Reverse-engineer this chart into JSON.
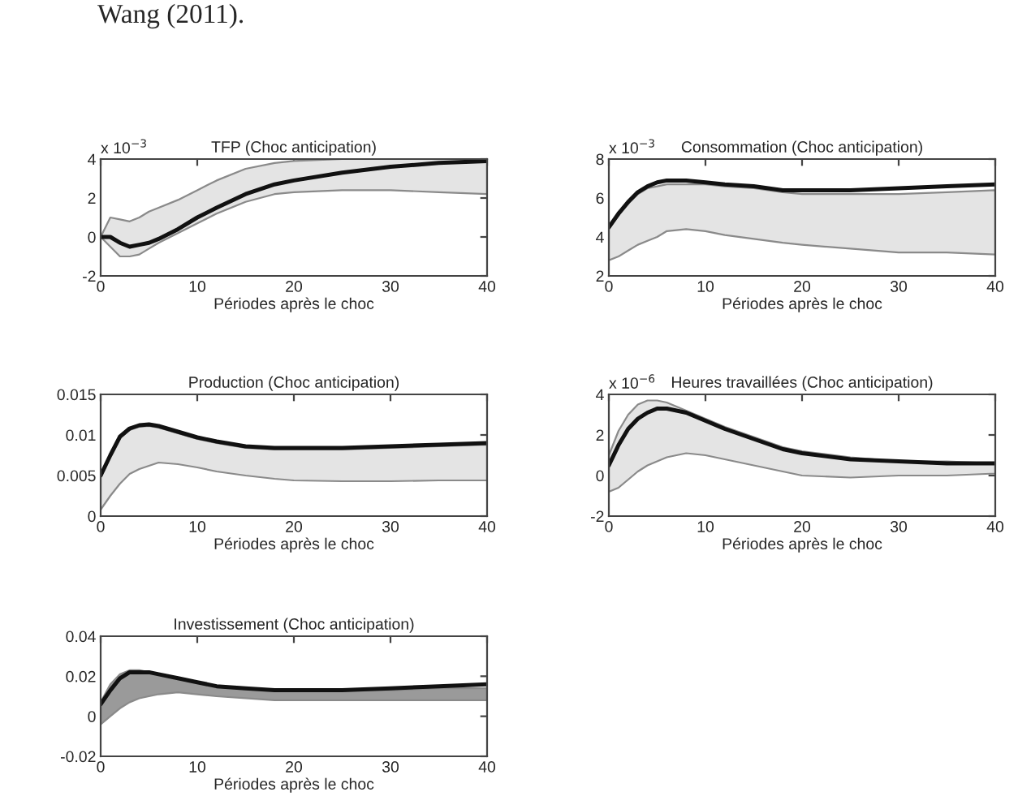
{
  "chart_data": [
    {
      "type": "line",
      "title": "TFP (Choc anticipation)",
      "xlabel": "Périodes après le choc",
      "annotations": [
        "x 10$^{−3}$",
        "Wang (2011)."
      ],
      "xlim": [
        0,
        40
      ],
      "xticks": [
        0,
        10,
        20,
        30,
        40
      ],
      "ylim": [
        -2,
        4
      ],
      "yticks": [
        -2,
        0,
        2,
        4
      ],
      "grid": false,
      "legend": false,
      "x": [
        0,
        1,
        2,
        3,
        4,
        5,
        6,
        8,
        10,
        12,
        15,
        18,
        20,
        25,
        30,
        35,
        40
      ],
      "series": [
        {
          "color": "#111111",
          "values": [
            0,
            0,
            -0.3,
            -0.5,
            -0.4,
            -0.3,
            -0.1,
            0.4,
            1.0,
            1.5,
            2.2,
            2.7,
            2.9,
            3.3,
            3.6,
            3.8,
            3.9
          ],
          "upper": [
            0,
            1.0,
            0.9,
            0.8,
            1.0,
            1.3,
            1.5,
            1.9,
            2.4,
            2.9,
            3.5,
            3.8,
            3.9,
            4.0,
            4.0,
            4.0,
            4.0
          ],
          "lower": [
            0,
            -0.5,
            -1.0,
            -1.0,
            -0.9,
            -0.6,
            -0.3,
            0.2,
            0.7,
            1.2,
            1.8,
            2.2,
            2.3,
            2.4,
            2.4,
            2.3,
            2.2
          ]
        }
      ]
    },
    {
      "type": "line",
      "title": "Consommation (Choc anticipation)",
      "xlabel": "Périodes après le choc",
      "annotations": [
        "x 10$^{−3}$"
      ],
      "xlim": [
        0,
        40
      ],
      "xticks": [
        0,
        10,
        20,
        30,
        40
      ],
      "ylim": [
        2,
        8
      ],
      "yticks": [
        2,
        4,
        6,
        8
      ],
      "grid": false,
      "legend": false,
      "x": [
        0,
        1,
        2,
        3,
        4,
        5,
        6,
        8,
        10,
        12,
        15,
        18,
        20,
        25,
        30,
        35,
        40
      ],
      "series": [
        {
          "color": "#111111",
          "values": [
            4.5,
            5.2,
            5.8,
            6.3,
            6.6,
            6.8,
            6.9,
            6.9,
            6.8,
            6.7,
            6.6,
            6.4,
            6.4,
            6.4,
            6.5,
            6.6,
            6.7
          ],
          "upper": [
            4.4,
            5.1,
            5.7,
            6.2,
            6.5,
            6.6,
            6.7,
            6.7,
            6.7,
            6.6,
            6.5,
            6.3,
            6.2,
            6.2,
            6.2,
            6.3,
            6.4
          ],
          "lower": [
            2.8,
            3.0,
            3.3,
            3.6,
            3.8,
            4.0,
            4.3,
            4.4,
            4.3,
            4.1,
            3.9,
            3.7,
            3.6,
            3.4,
            3.2,
            3.2,
            3.1
          ]
        }
      ]
    },
    {
      "type": "line",
      "title": "Production (Choc anticipation)",
      "xlabel": "Périodes après le choc",
      "xlim": [
        0,
        40
      ],
      "xticks": [
        0,
        10,
        20,
        30,
        40
      ],
      "ylim": [
        0,
        0.015
      ],
      "yticks": [
        0,
        0.005,
        0.01,
        0.015
      ],
      "grid": false,
      "legend": false,
      "x": [
        0,
        1,
        2,
        3,
        4,
        5,
        6,
        8,
        10,
        12,
        15,
        18,
        20,
        25,
        30,
        35,
        40
      ],
      "series": [
        {
          "color": "#111111",
          "values": [
            0.005,
            0.0075,
            0.0098,
            0.0108,
            0.0112,
            0.0113,
            0.0111,
            0.0104,
            0.0097,
            0.0092,
            0.0086,
            0.0084,
            0.0084,
            0.0084,
            0.0086,
            0.0088,
            0.009
          ],
          "upper": [
            0.0048,
            0.0073,
            0.0096,
            0.0106,
            0.011,
            0.0111,
            0.0109,
            0.0102,
            0.0095,
            0.009,
            0.0084,
            0.0082,
            0.0082,
            0.0082,
            0.0084,
            0.0086,
            0.0088
          ],
          "lower": [
            0.0008,
            0.0025,
            0.004,
            0.0052,
            0.0058,
            0.0062,
            0.0066,
            0.0064,
            0.006,
            0.0055,
            0.005,
            0.0046,
            0.0044,
            0.0043,
            0.0043,
            0.0044,
            0.0044
          ]
        }
      ]
    },
    {
      "type": "line",
      "title": "Heures travaillées (Choc anticipation)",
      "xlabel": "Périodes après le choc",
      "annotations": [
        "x 10$^{−6}$"
      ],
      "xlim": [
        0,
        40
      ],
      "xticks": [
        0,
        10,
        20,
        30,
        40
      ],
      "ylim": [
        -2,
        4
      ],
      "yticks": [
        -2,
        0,
        2,
        4
      ],
      "grid": false,
      "legend": false,
      "x": [
        0,
        1,
        2,
        3,
        4,
        5,
        6,
        8,
        10,
        12,
        15,
        18,
        20,
        25,
        30,
        35,
        40
      ],
      "series": [
        {
          "color": "#111111",
          "values": [
            0.5,
            1.5,
            2.3,
            2.8,
            3.1,
            3.3,
            3.3,
            3.1,
            2.7,
            2.3,
            1.8,
            1.3,
            1.1,
            0.8,
            0.7,
            0.6,
            0.6
          ],
          "upper": [
            1.0,
            2.2,
            3.0,
            3.5,
            3.7,
            3.7,
            3.6,
            3.2,
            2.8,
            2.4,
            1.9,
            1.4,
            1.2,
            0.9,
            0.7,
            0.7,
            0.6
          ],
          "lower": [
            -0.8,
            -0.6,
            -0.2,
            0.2,
            0.5,
            0.7,
            0.9,
            1.1,
            1.0,
            0.8,
            0.5,
            0.2,
            0.0,
            -0.1,
            0.0,
            0.0,
            0.1
          ]
        }
      ]
    },
    {
      "type": "line",
      "title": "Investissement (Choc anticipation)",
      "xlabel": "Périodes après le choc",
      "xlim": [
        0,
        40
      ],
      "xticks": [
        0,
        10,
        20,
        30,
        40
      ],
      "ylim": [
        -0.02,
        0.04
      ],
      "yticks": [
        -0.02,
        0,
        0.02,
        0.04
      ],
      "grid": false,
      "legend": false,
      "x": [
        0,
        1,
        2,
        3,
        4,
        5,
        6,
        8,
        10,
        12,
        15,
        18,
        20,
        25,
        30,
        35,
        40
      ],
      "series": [
        {
          "color": "#111111",
          "values": [
            0.006,
            0.013,
            0.019,
            0.022,
            0.022,
            0.022,
            0.021,
            0.019,
            0.017,
            0.015,
            0.014,
            0.013,
            0.013,
            0.013,
            0.014,
            0.015,
            0.016
          ],
          "upper": [
            0.007,
            0.016,
            0.021,
            0.023,
            0.023,
            0.022,
            0.021,
            0.019,
            0.017,
            0.015,
            0.014,
            0.013,
            0.013,
            0.013,
            0.013,
            0.014,
            0.014
          ],
          "lower": [
            -0.004,
            0.0,
            0.004,
            0.007,
            0.009,
            0.01,
            0.011,
            0.012,
            0.011,
            0.01,
            0.009,
            0.008,
            0.008,
            0.008,
            0.008,
            0.008,
            0.008
          ]
        }
      ]
    }
  ]
}
